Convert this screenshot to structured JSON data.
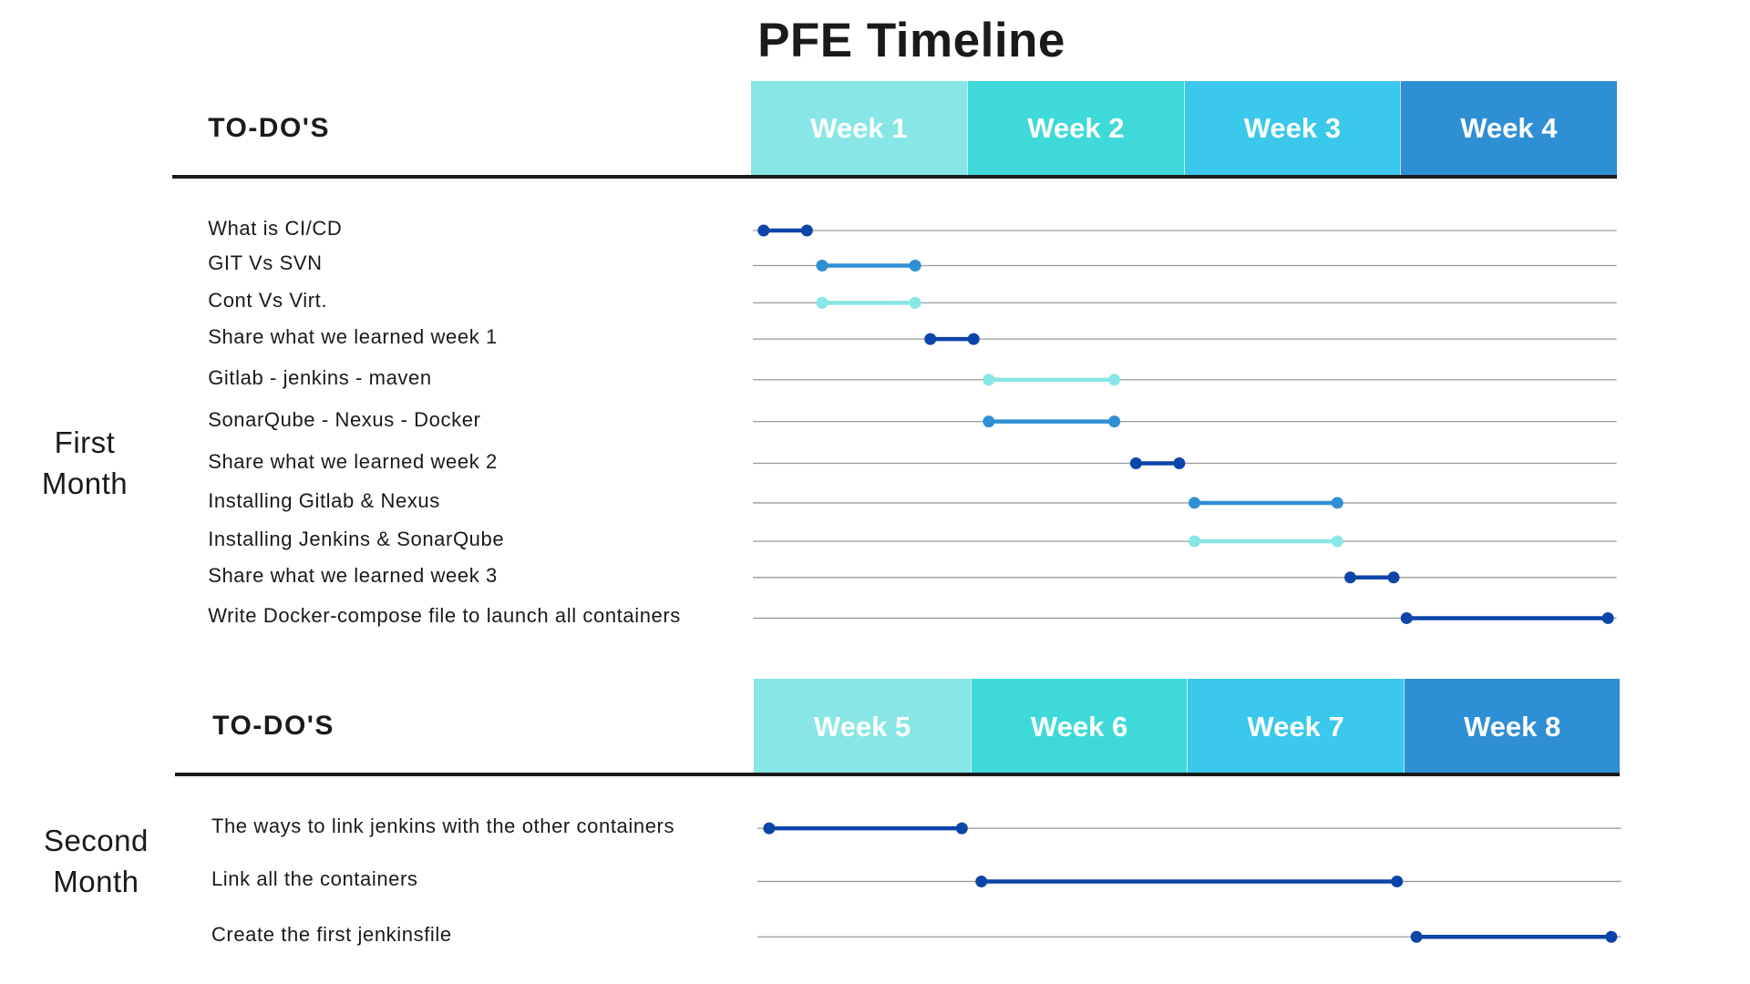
{
  "title": "PFE Timeline",
  "colors": {
    "week_fill": [
      "#88e6e6",
      "#3fd9d9",
      "#3ac8ec",
      "#2f8fd4"
    ],
    "bar_dark": "#0b45a8",
    "bar_mid": "#2f8fd4",
    "bar_light": "#88e6e6",
    "track_line": "#9a9a9a"
  },
  "sections": [
    {
      "todo_label": "TO-DO'S",
      "month_label_line1": "First",
      "month_label_line2": "Month",
      "weeks": [
        "Week 1",
        "Week 2",
        "Week 3",
        "Week 4"
      ],
      "tasks": [
        {
          "label": "What is CI/CD",
          "start": 0.06,
          "end": 0.26,
          "color": "dark"
        },
        {
          "label": "GIT Vs SVN",
          "start": 0.33,
          "end": 0.76,
          "color": "mid"
        },
        {
          "label": "Cont Vs Virt.",
          "start": 0.33,
          "end": 0.76,
          "color": "light"
        },
        {
          "label": "Share what we learned week 1",
          "start": 0.83,
          "end": 1.03,
          "color": "dark"
        },
        {
          "label": "Gitlab - jenkins - maven",
          "start": 1.1,
          "end": 1.68,
          "color": "light"
        },
        {
          "label": "SonarQube - Nexus - Docker",
          "start": 1.1,
          "end": 1.68,
          "color": "mid"
        },
        {
          "label": "Share what we learned week 2",
          "start": 1.78,
          "end": 1.98,
          "color": "dark"
        },
        {
          "label": "Installing Gitlab & Nexus",
          "start": 2.05,
          "end": 2.71,
          "color": "mid"
        },
        {
          "label": "Installing Jenkins & SonarQube",
          "start": 2.05,
          "end": 2.71,
          "color": "light"
        },
        {
          "label": "Share what we learned week 3",
          "start": 2.77,
          "end": 2.97,
          "color": "dark"
        },
        {
          "label": "Write Docker-compose file to launch all containers",
          "start": 3.03,
          "end": 3.96,
          "color": "dark"
        }
      ]
    },
    {
      "todo_label": "TO-DO'S",
      "month_label_line1": "Second",
      "month_label_line2": "Month",
      "weeks": [
        "Week 5",
        "Week 6",
        "Week 7",
        "Week 8"
      ],
      "tasks": [
        {
          "label": "The ways to link jenkins with the other containers",
          "start": 0.07,
          "end": 0.96,
          "color": "dark"
        },
        {
          "label": "Link all the containers",
          "start": 1.05,
          "end": 2.97,
          "color": "dark"
        },
        {
          "label": "Create the first jenkinsfile",
          "start": 3.06,
          "end": 3.96,
          "color": "dark"
        }
      ]
    }
  ]
}
